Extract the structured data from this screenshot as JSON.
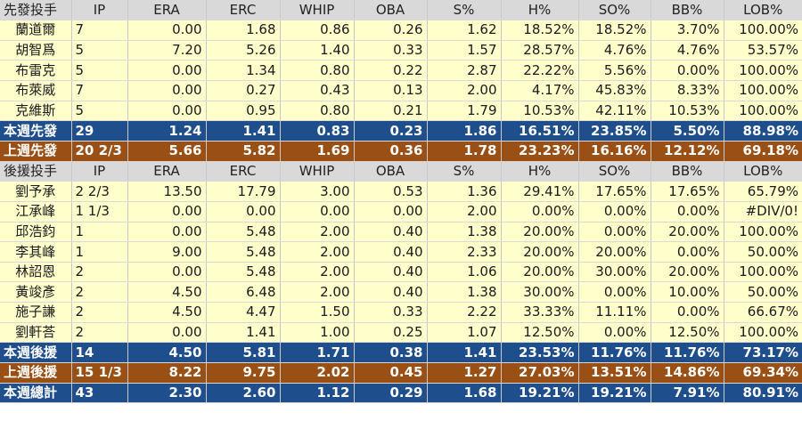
{
  "columns": [
    "IP",
    "ERA",
    "ERC",
    "WHIP",
    "OBA",
    "S%",
    "H%",
    "SO%",
    "BB%",
    "LOB%"
  ],
  "sections": [
    {
      "header": "先發投手",
      "rows": [
        [
          "蘭道爾",
          "7",
          "0.00",
          "1.68",
          "0.86",
          "0.26",
          "1.62",
          "18.52%",
          "18.52%",
          "3.70%",
          "100.00%"
        ],
        [
          "胡智爲",
          "5",
          "7.20",
          "5.26",
          "1.40",
          "0.33",
          "1.57",
          "28.57%",
          "4.76%",
          "4.76%",
          "53.57%"
        ],
        [
          "布雷克",
          "5",
          "0.00",
          "1.34",
          "0.80",
          "0.22",
          "2.87",
          "22.22%",
          "5.56%",
          "0.00%",
          "100.00%"
        ],
        [
          "布萊威",
          "7",
          "0.00",
          "0.27",
          "0.43",
          "0.13",
          "2.00",
          "4.17%",
          "45.83%",
          "8.33%",
          "100.00%"
        ],
        [
          "克維斯",
          "5",
          "0.00",
          "0.95",
          "0.80",
          "0.21",
          "1.79",
          "10.53%",
          "42.11%",
          "10.53%",
          "100.00%"
        ]
      ],
      "this_week": [
        "本週先發",
        "29",
        "1.24",
        "1.41",
        "0.83",
        "0.23",
        "1.86",
        "16.51%",
        "23.85%",
        "5.50%",
        "88.98%"
      ],
      "last_week": [
        "上週先發",
        "20 2/3",
        "5.66",
        "5.82",
        "1.69",
        "0.36",
        "1.78",
        "23.23%",
        "16.16%",
        "12.12%",
        "69.18%"
      ]
    },
    {
      "header": "後援投手",
      "rows": [
        [
          "劉予承",
          "2 2/3",
          "13.50",
          "17.79",
          "3.00",
          "0.53",
          "1.36",
          "29.41%",
          "17.65%",
          "17.65%",
          "65.79%"
        ],
        [
          "江承峰",
          "1 1/3",
          "0.00",
          "0.00",
          "0.00",
          "0.00",
          "2.00",
          "0.00%",
          "0.00%",
          "0.00%",
          "#DIV/0!"
        ],
        [
          "邱浩鈞",
          "1",
          "0.00",
          "5.48",
          "2.00",
          "0.40",
          "1.38",
          "20.00%",
          "0.00%",
          "20.00%",
          "100.00%"
        ],
        [
          "李其峰",
          "1",
          "9.00",
          "5.48",
          "2.00",
          "0.40",
          "2.33",
          "20.00%",
          "20.00%",
          "0.00%",
          "50.00%"
        ],
        [
          "林詔恩",
          "2",
          "0.00",
          "5.48",
          "2.00",
          "0.40",
          "1.06",
          "20.00%",
          "30.00%",
          "20.00%",
          "100.00%"
        ],
        [
          "黃竣彥",
          "2",
          "4.50",
          "6.48",
          "2.00",
          "0.40",
          "1.38",
          "30.00%",
          "0.00%",
          "10.00%",
          "50.00%"
        ],
        [
          "施子謙",
          "2",
          "4.50",
          "4.47",
          "1.50",
          "0.33",
          "2.22",
          "33.33%",
          "11.11%",
          "0.00%",
          "66.67%"
        ],
        [
          "劉軒荅",
          "2",
          "0.00",
          "1.41",
          "1.00",
          "0.25",
          "1.07",
          "12.50%",
          "0.00%",
          "12.50%",
          "100.00%"
        ]
      ],
      "this_week": [
        "本週後援",
        "14",
        "4.50",
        "5.81",
        "1.71",
        "0.38",
        "1.41",
        "23.53%",
        "11.76%",
        "11.76%",
        "73.17%"
      ],
      "last_week": [
        "上週後援",
        "15 1/3",
        "8.22",
        "9.75",
        "2.02",
        "0.45",
        "1.27",
        "27.03%",
        "13.51%",
        "14.86%",
        "69.34%"
      ]
    }
  ],
  "total": [
    "本週總計",
    "43",
    "2.30",
    "2.60",
    "1.12",
    "0.29",
    "1.68",
    "19.21%",
    "19.21%",
    "7.91%",
    "80.91%"
  ],
  "colors": {
    "header_bg": "#d9d9d9",
    "row_bg": "#ffffcc",
    "this_week_bg": "#1f4e8c",
    "last_week_bg": "#9a5014",
    "summary_text": "#ffffff"
  }
}
